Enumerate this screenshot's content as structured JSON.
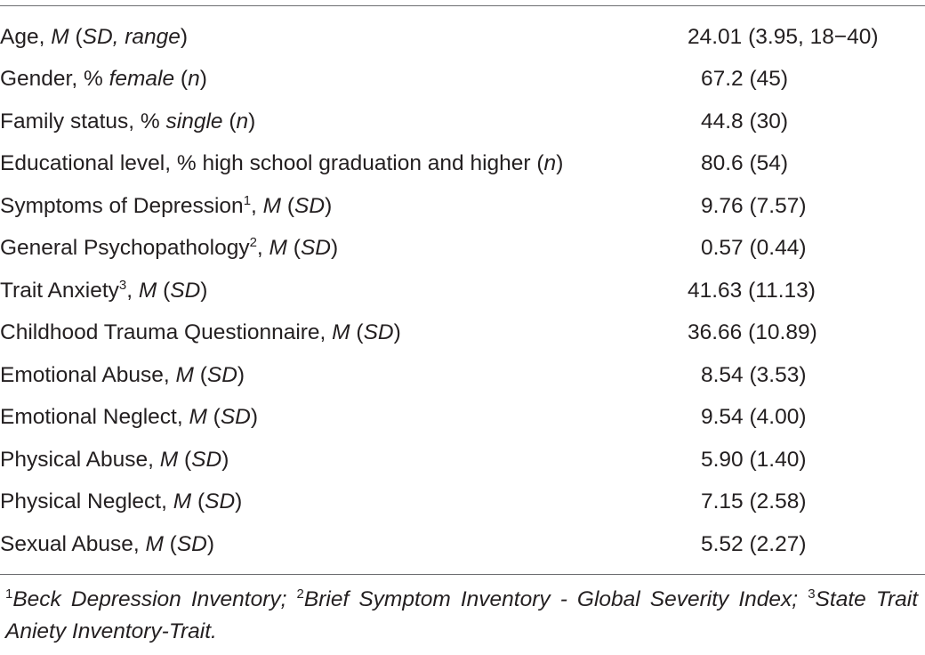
{
  "table": {
    "rows": [
      {
        "label": [
          "Age, ",
          {
            "i": "M"
          },
          " (",
          {
            "i": "SD, range"
          },
          ")"
        ],
        "value": "24.01 (3.95, 18−40)",
        "align": "wide"
      },
      {
        "label": [
          "Gender, % ",
          {
            "i": "female"
          },
          " (",
          {
            "i": "n"
          },
          ")"
        ],
        "value": "67.2 (45)",
        "align": "mid"
      },
      {
        "label": [
          "Family status, % ",
          {
            "i": "single"
          },
          " (",
          {
            "i": "n"
          },
          ")"
        ],
        "value": "44.8 (30)",
        "align": "mid"
      },
      {
        "label": [
          "Educational level, % high school graduation and higher (",
          {
            "i": "n"
          },
          ")"
        ],
        "value": "80.6 (54)",
        "align": "mid"
      },
      {
        "label": [
          "Symptoms of Depression",
          {
            "sup": "1"
          },
          ", ",
          {
            "i": "M"
          },
          " (",
          {
            "i": "SD"
          },
          ")"
        ],
        "value": "9.76 (7.57)",
        "align": "mid"
      },
      {
        "label": [
          "General Psychopathology",
          {
            "sup": "2"
          },
          ", ",
          {
            "i": "M"
          },
          " (",
          {
            "i": "SD"
          },
          ")"
        ],
        "value": "0.57 (0.44)",
        "align": "mid"
      },
      {
        "label": [
          "Trait Anxiety",
          {
            "sup": "3"
          },
          ", ",
          {
            "i": "M"
          },
          " (",
          {
            "i": "SD"
          },
          ")"
        ],
        "value": "41.63 (11.13)",
        "align": "wide"
      },
      {
        "label": [
          "Childhood Trauma Questionnaire, ",
          {
            "i": "M"
          },
          " (",
          {
            "i": "SD"
          },
          ")"
        ],
        "value": "36.66 (10.89)",
        "align": "wide"
      },
      {
        "label": [
          "Emotional Abuse, ",
          {
            "i": "M"
          },
          " (",
          {
            "i": "SD"
          },
          ")"
        ],
        "value": "8.54 (3.53)",
        "align": "mid"
      },
      {
        "label": [
          "Emotional Neglect, ",
          {
            "i": "M"
          },
          " (",
          {
            "i": "SD"
          },
          ")"
        ],
        "value": "9.54 (4.00)",
        "align": "mid"
      },
      {
        "label": [
          "Physical Abuse, ",
          {
            "i": "M"
          },
          " (",
          {
            "i": "SD"
          },
          ")"
        ],
        "value": "5.90 (1.40)",
        "align": "mid"
      },
      {
        "label": [
          "Physical Neglect, ",
          {
            "i": "M"
          },
          " (",
          {
            "i": "SD"
          },
          ")"
        ],
        "value": "7.15 (2.58)",
        "align": "mid"
      },
      {
        "label": [
          "Sexual Abuse, ",
          {
            "i": "M"
          },
          " (",
          {
            "i": "SD"
          },
          ")"
        ],
        "value": "5.52 (2.27)",
        "align": "mid"
      }
    ]
  },
  "footnotes": [
    {
      "marker": "1",
      "text": "Beck Depression Inventory;"
    },
    {
      "marker": "2",
      "text": "Brief Symptom Inventory - Global Severity Index;"
    },
    {
      "marker": "3",
      "text": "State Trait Aniety Inventory-Trait."
    }
  ],
  "colors": {
    "text": "#231f20",
    "rule": "#6d6e71",
    "background": "#ffffff"
  }
}
